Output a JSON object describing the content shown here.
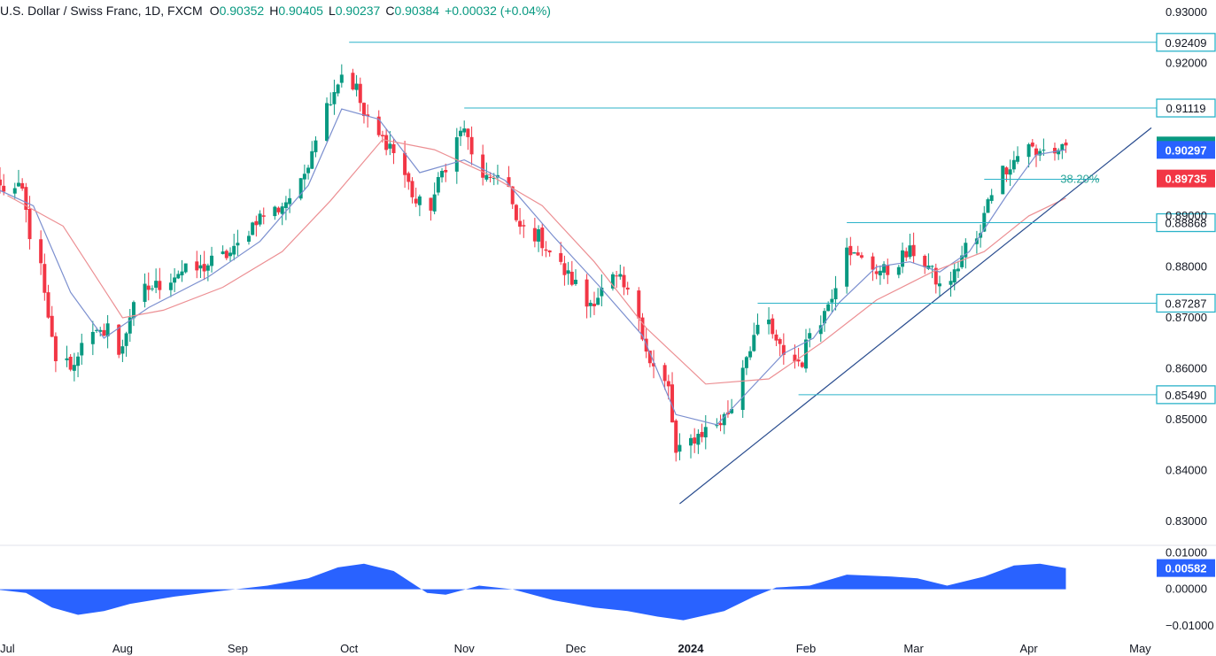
{
  "header": {
    "symbol": "U.S. Dollar / Swiss Franc, 1D, FXCM",
    "open_label": "O",
    "open": "0.90352",
    "high_label": "H",
    "high": "0.90405",
    "low_label": "L",
    "low": "0.90237",
    "close_label": "C",
    "close": "0.90384",
    "change": "+0.00032 (+0.04%)"
  },
  "colors": {
    "up": "#089981",
    "down": "#f23645",
    "ma_fast": "#7b8fcf",
    "ma_slow": "#ec8f93",
    "level_line": "#2bb3c9",
    "trendline": "#2a4d8f",
    "oscillator": "#2962ff",
    "grid_text": "#131722"
  },
  "chart_data": [
    {
      "type": "candlestick",
      "title": "U.S. Dollar / Swiss Franc, 1D, FXCM",
      "x_ticks": [
        {
          "date": "2023-07-01",
          "label": "Jul"
        },
        {
          "date": "2023-08-01",
          "label": "Aug"
        },
        {
          "date": "2023-09-01",
          "label": "Sep"
        },
        {
          "date": "2023-10-01",
          "label": "Oct"
        },
        {
          "date": "2023-11-01",
          "label": "Nov"
        },
        {
          "date": "2023-12-01",
          "label": "Dec"
        },
        {
          "date": "2024-01-01",
          "label": "2024",
          "bold": true
        },
        {
          "date": "2024-02-01",
          "label": "Feb"
        },
        {
          "date": "2024-03-01",
          "label": "Mar"
        },
        {
          "date": "2024-04-01",
          "label": "Apr"
        },
        {
          "date": "2024-05-01",
          "label": "May"
        }
      ],
      "x_range": [
        "2023-06-29",
        "2024-05-04"
      ],
      "y_ticks": [
        "0.93000",
        "0.92000",
        "0.89000",
        "0.88000",
        "0.87000",
        "0.86000",
        "0.85000",
        "0.84000",
        "0.83000"
      ],
      "ylim": [
        0.8255,
        0.9324
      ],
      "grid": false,
      "price_path": [
        [
          "2023-06-29",
          0.8955
        ],
        [
          "2023-07-05",
          0.8948
        ],
        [
          "2023-07-07",
          0.8865
        ],
        [
          "2023-07-10",
          0.8795
        ],
        [
          "2023-07-12",
          0.869
        ],
        [
          "2023-07-14",
          0.862
        ],
        [
          "2023-07-19",
          0.8605
        ],
        [
          "2023-07-21",
          0.866
        ],
        [
          "2023-07-26",
          0.8665
        ],
        [
          "2023-07-28",
          0.869
        ],
        [
          "2023-07-31",
          0.862
        ],
        [
          "2023-08-03",
          0.8705
        ],
        [
          "2023-08-07",
          0.8755
        ],
        [
          "2023-08-11",
          0.8765
        ],
        [
          "2023-08-16",
          0.879
        ],
        [
          "2023-08-22",
          0.8795
        ],
        [
          "2023-08-25",
          0.881
        ],
        [
          "2023-08-31",
          0.883
        ],
        [
          "2023-09-06",
          0.8895
        ],
        [
          "2023-09-12",
          0.8915
        ],
        [
          "2023-09-18",
          0.896
        ],
        [
          "2023-09-22",
          0.906
        ],
        [
          "2023-09-26",
          0.9135
        ],
        [
          "2023-09-29",
          0.918
        ],
        [
          "2023-10-03",
          0.915
        ],
        [
          "2023-10-05",
          0.9095
        ],
        [
          "2023-10-09",
          0.9055
        ],
        [
          "2023-10-12",
          0.904
        ],
        [
          "2023-10-16",
          0.898
        ],
        [
          "2023-10-19",
          0.8925
        ],
        [
          "2023-10-23",
          0.892
        ],
        [
          "2023-10-26",
          0.8985
        ],
        [
          "2023-10-30",
          0.905
        ],
        [
          "2023-11-01",
          0.9075
        ],
        [
          "2023-11-03",
          0.9015
        ],
        [
          "2023-11-08",
          0.896
        ],
        [
          "2023-11-10",
          0.899
        ],
        [
          "2023-11-13",
          0.8955
        ],
        [
          "2023-11-15",
          0.888
        ],
        [
          "2023-11-21",
          0.886
        ],
        [
          "2023-11-28",
          0.879
        ],
        [
          "2023-12-01",
          0.8765
        ],
        [
          "2023-12-04",
          0.8725
        ],
        [
          "2023-12-07",
          0.8745
        ],
        [
          "2023-12-11",
          0.8775
        ],
        [
          "2023-12-13",
          0.877
        ],
        [
          "2023-12-18",
          0.8705
        ],
        [
          "2023-12-21",
          0.861
        ],
        [
          "2023-12-26",
          0.856
        ],
        [
          "2023-12-28",
          0.843
        ],
        [
          "2024-01-02",
          0.8465
        ],
        [
          "2024-01-05",
          0.848
        ],
        [
          "2024-01-09",
          0.8495
        ],
        [
          "2024-01-12",
          0.8525
        ],
        [
          "2024-01-15",
          0.861
        ],
        [
          "2024-01-18",
          0.8665
        ],
        [
          "2024-01-22",
          0.869
        ],
        [
          "2024-01-24",
          0.8645
        ],
        [
          "2024-01-29",
          0.8615
        ],
        [
          "2024-01-31",
          0.8615
        ],
        [
          "2024-02-02",
          0.8675
        ],
        [
          "2024-02-06",
          0.871
        ],
        [
          "2024-02-09",
          0.877
        ],
        [
          "2024-02-12",
          0.885
        ],
        [
          "2024-02-14",
          0.882
        ],
        [
          "2024-02-20",
          0.8795
        ],
        [
          "2024-02-23",
          0.879
        ],
        [
          "2024-02-27",
          0.882
        ],
        [
          "2024-03-01",
          0.883
        ],
        [
          "2024-03-05",
          0.88
        ],
        [
          "2024-03-08",
          0.876
        ],
        [
          "2024-03-12",
          0.8785
        ],
        [
          "2024-03-15",
          0.884
        ],
        [
          "2024-03-19",
          0.886
        ],
        [
          "2024-03-21",
          0.894
        ],
        [
          "2024-03-25",
          0.899
        ],
        [
          "2024-03-28",
          0.901
        ],
        [
          "2024-04-01",
          0.9045
        ],
        [
          "2024-04-03",
          0.9015
        ],
        [
          "2024-04-05",
          0.9035
        ],
        [
          "2024-04-08",
          0.9025
        ],
        [
          "2024-04-10",
          0.9038
        ],
        [
          "2024-04-11",
          0.9038
        ]
      ],
      "ma_fast": [
        [
          "2023-06-29",
          0.895
        ],
        [
          "2023-07-08",
          0.892
        ],
        [
          "2023-07-18",
          0.875
        ],
        [
          "2023-07-27",
          0.866
        ],
        [
          "2023-08-08",
          0.872
        ],
        [
          "2023-08-24",
          0.878
        ],
        [
          "2023-09-07",
          0.885
        ],
        [
          "2023-09-20",
          0.896
        ],
        [
          "2023-09-29",
          0.911
        ],
        [
          "2023-10-09",
          0.909
        ],
        [
          "2023-10-20",
          0.8985
        ],
        [
          "2023-11-01",
          0.901
        ],
        [
          "2023-11-12",
          0.897
        ],
        [
          "2023-11-25",
          0.886
        ],
        [
          "2023-12-07",
          0.8765
        ],
        [
          "2023-12-19",
          0.8665
        ],
        [
          "2023-12-28",
          0.851
        ],
        [
          "2024-01-08",
          0.849
        ],
        [
          "2024-01-17",
          0.856
        ],
        [
          "2024-01-26",
          0.863
        ],
        [
          "2024-02-03",
          0.866
        ],
        [
          "2024-02-10",
          0.873
        ],
        [
          "2024-02-20",
          0.88
        ],
        [
          "2024-02-29",
          0.881
        ],
        [
          "2024-03-08",
          0.879
        ],
        [
          "2024-03-16",
          0.883
        ],
        [
          "2024-03-26",
          0.894
        ],
        [
          "2024-04-03",
          0.902
        ],
        [
          "2024-04-11",
          0.903
        ]
      ],
      "ma_slow": [
        [
          "2023-07-01",
          0.894
        ],
        [
          "2023-07-16",
          0.888
        ],
        [
          "2023-08-01",
          0.87
        ],
        [
          "2023-08-12",
          0.8715
        ],
        [
          "2023-08-28",
          0.876
        ],
        [
          "2023-09-13",
          0.883
        ],
        [
          "2023-09-26",
          0.893
        ],
        [
          "2023-10-10",
          0.905
        ],
        [
          "2023-10-24",
          0.903
        ],
        [
          "2023-11-08",
          0.898
        ],
        [
          "2023-11-22",
          0.892
        ],
        [
          "2023-12-06",
          0.881
        ],
        [
          "2023-12-20",
          0.868
        ],
        [
          "2024-01-05",
          0.857
        ],
        [
          "2024-01-22",
          0.858
        ],
        [
          "2024-02-05",
          0.865
        ],
        [
          "2024-02-20",
          0.8735
        ],
        [
          "2024-03-06",
          0.879
        ],
        [
          "2024-03-20",
          0.883
        ],
        [
          "2024-04-01",
          0.89
        ],
        [
          "2024-04-11",
          0.8935
        ]
      ],
      "levels": [
        {
          "value": 0.92409,
          "label": "0.92409",
          "from": "2023-10-01"
        },
        {
          "value": 0.91119,
          "label": "0.91119",
          "from": "2023-11-01"
        },
        {
          "value": 0.88868,
          "label": "0.88868",
          "from": "2024-02-12"
        },
        {
          "value": 0.87287,
          "label": "0.87287",
          "from": "2024-01-19"
        },
        {
          "value": 0.8549,
          "label": "0.85490",
          "from": "2024-01-30"
        }
      ],
      "fibonacci": {
        "value": 0.8972,
        "label": "38.20%",
        "from": "2024-03-20",
        "to": "2024-04-20"
      },
      "trendline": {
        "start": [
          "2023-12-29",
          0.8335
        ],
        "end": [
          "2024-05-04",
          0.9073
        ]
      },
      "price_labels": [
        {
          "value": 0.90384,
          "label": "0.90384",
          "color": "#089981"
        },
        {
          "value": 0.90297,
          "label": "0.90297",
          "color": "#2962ff"
        },
        {
          "value": 0.89735,
          "label": "0.89735",
          "color": "#f23645"
        }
      ]
    },
    {
      "type": "area",
      "y_ticks": [
        "0.01000",
        "0.00000",
        "−0.01000"
      ],
      "ylim": [
        -0.0115,
        0.0118
      ],
      "current": {
        "value": 0.00582,
        "label": "0.00582"
      },
      "series": [
        [
          "2023-06-29",
          -0.0002
        ],
        [
          "2023-07-06",
          -0.001
        ],
        [
          "2023-07-13",
          -0.005
        ],
        [
          "2023-07-20",
          -0.007
        ],
        [
          "2023-07-27",
          -0.006
        ],
        [
          "2023-08-03",
          -0.004
        ],
        [
          "2023-08-15",
          -0.002
        ],
        [
          "2023-08-27",
          -0.0005
        ],
        [
          "2023-09-09",
          0.001
        ],
        [
          "2023-09-20",
          0.003
        ],
        [
          "2023-09-28",
          0.006
        ],
        [
          "2023-10-05",
          0.007
        ],
        [
          "2023-10-13",
          0.005
        ],
        [
          "2023-10-22",
          -0.001
        ],
        [
          "2023-10-27",
          -0.0015
        ],
        [
          "2023-11-05",
          0.001
        ],
        [
          "2023-11-14",
          0.0
        ],
        [
          "2023-11-25",
          -0.003
        ],
        [
          "2023-12-06",
          -0.005
        ],
        [
          "2023-12-15",
          -0.006
        ],
        [
          "2023-12-23",
          -0.0075
        ],
        [
          "2023-12-30",
          -0.0085
        ],
        [
          "2024-01-10",
          -0.006
        ],
        [
          "2024-01-18",
          -0.002
        ],
        [
          "2024-01-24",
          0.0005
        ],
        [
          "2024-02-02",
          0.001
        ],
        [
          "2024-02-12",
          0.004
        ],
        [
          "2024-02-24",
          0.0035
        ],
        [
          "2024-03-02",
          0.003
        ],
        [
          "2024-03-10",
          0.001
        ],
        [
          "2024-03-20",
          0.0035
        ],
        [
          "2024-03-28",
          0.0065
        ],
        [
          "2024-04-04",
          0.007
        ],
        [
          "2024-04-11",
          0.0058
        ]
      ]
    }
  ]
}
